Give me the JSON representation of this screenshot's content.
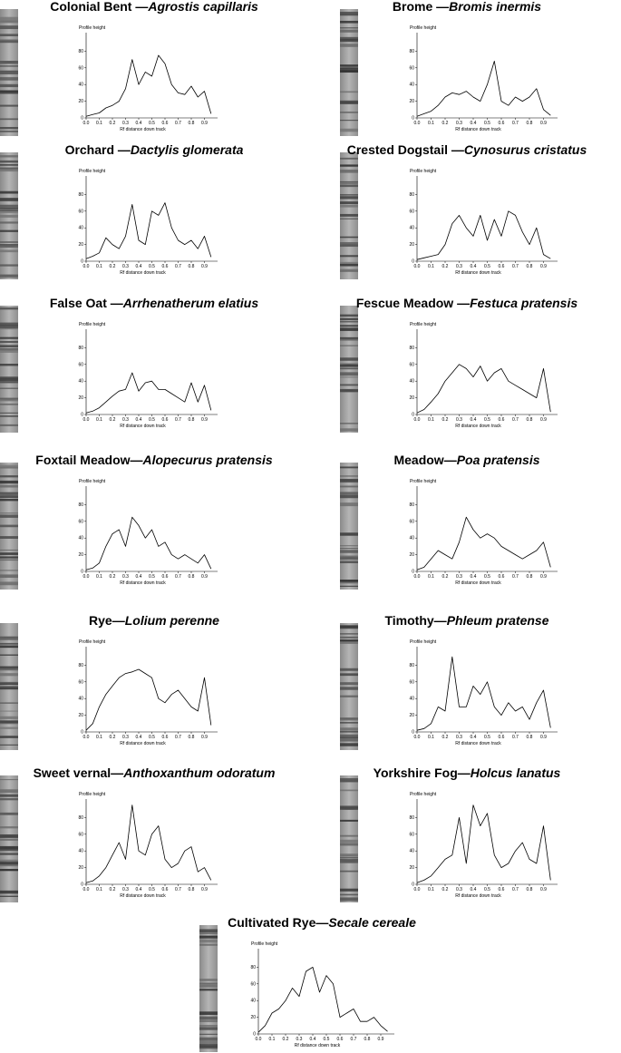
{
  "chart_data": [
    {
      "type": "line",
      "title": "Colonial Bent —",
      "species": "Agrostis capillaris",
      "ylabel": "Profile height",
      "xlabel": "Rf distance down track",
      "x": [
        0,
        0.05,
        0.1,
        0.15,
        0.2,
        0.25,
        0.3,
        0.35,
        0.4,
        0.45,
        0.5,
        0.55,
        0.6,
        0.65,
        0.7,
        0.75,
        0.8,
        0.85,
        0.9,
        0.95
      ],
      "values": [
        2,
        4,
        6,
        12,
        15,
        20,
        35,
        70,
        40,
        55,
        50,
        75,
        65,
        40,
        30,
        28,
        38,
        25,
        32,
        5
      ],
      "xlim": [
        0,
        1
      ],
      "ylim": [
        0,
        100
      ],
      "xticks": [
        {
          "value": 0,
          "label": "0.0"
        },
        0.1,
        0.2,
        0.3,
        0.4,
        0.5,
        0.6,
        0.7,
        0.8,
        0.9
      ],
      "yticks": [
        0,
        20,
        40,
        60,
        80
      ],
      "color": "#000000"
    },
    {
      "type": "line",
      "title": "Brome —",
      "species": "Bromis inermis",
      "ylabel": "Profile height",
      "xlabel": "Rf distance down track",
      "x": [
        0,
        0.05,
        0.1,
        0.15,
        0.2,
        0.25,
        0.3,
        0.35,
        0.4,
        0.45,
        0.5,
        0.55,
        0.6,
        0.65,
        0.7,
        0.75,
        0.8,
        0.85,
        0.9,
        0.95
      ],
      "values": [
        2,
        5,
        8,
        15,
        25,
        30,
        28,
        32,
        25,
        20,
        40,
        68,
        20,
        15,
        25,
        20,
        25,
        35,
        10,
        3
      ],
      "xlim": [
        0,
        1
      ],
      "ylim": [
        0,
        100
      ],
      "xticks": [
        {
          "value": 0,
          "label": "0.0"
        },
        0.1,
        0.2,
        0.3,
        0.4,
        0.5,
        0.6,
        0.7,
        0.8,
        0.9
      ],
      "yticks": [
        0,
        20,
        40,
        60,
        80
      ],
      "color": "#000000"
    },
    {
      "type": "line",
      "title": "Orchard —",
      "species": "Dactylis glomerata",
      "ylabel": "Profile height",
      "xlabel": "Rf distance down track",
      "x": [
        0,
        0.05,
        0.1,
        0.15,
        0.2,
        0.25,
        0.3,
        0.35,
        0.4,
        0.45,
        0.5,
        0.55,
        0.6,
        0.65,
        0.7,
        0.75,
        0.8,
        0.85,
        0.9,
        0.95
      ],
      "values": [
        3,
        6,
        10,
        28,
        20,
        15,
        30,
        68,
        25,
        20,
        60,
        55,
        70,
        40,
        25,
        20,
        25,
        15,
        30,
        5
      ],
      "xlim": [
        0,
        1
      ],
      "ylim": [
        0,
        100
      ],
      "xticks": [
        {
          "value": 0,
          "label": "0.0"
        },
        0.1,
        0.2,
        0.3,
        0.4,
        0.5,
        0.6,
        0.7,
        0.8,
        0.9
      ],
      "yticks": [
        0,
        20,
        40,
        60,
        80
      ],
      "color": "#000000"
    },
    {
      "type": "line",
      "title": "Crested Dogstail —",
      "species": "Cynosurus cristatus",
      "ylabel": "Profile height",
      "xlabel": "Rf distance down track",
      "x": [
        0,
        0.05,
        0.1,
        0.15,
        0.2,
        0.25,
        0.3,
        0.35,
        0.4,
        0.45,
        0.5,
        0.55,
        0.6,
        0.65,
        0.7,
        0.75,
        0.8,
        0.85,
        0.9,
        0.95
      ],
      "values": [
        2,
        4,
        6,
        8,
        20,
        45,
        55,
        40,
        30,
        55,
        25,
        50,
        30,
        60,
        55,
        35,
        20,
        40,
        8,
        3
      ],
      "xlim": [
        0,
        1
      ],
      "ylim": [
        0,
        100
      ],
      "xticks": [
        {
          "value": 0,
          "label": "0.0"
        },
        0.1,
        0.2,
        0.3,
        0.4,
        0.5,
        0.6,
        0.7,
        0.8,
        0.9
      ],
      "yticks": [
        0,
        20,
        40,
        60,
        80
      ],
      "color": "#000000"
    },
    {
      "type": "line",
      "title": "False Oat —",
      "species": "Arrhenatherum elatius",
      "ylabel": "Profile height",
      "xlabel": "Rf distance down track",
      "x": [
        0,
        0.05,
        0.1,
        0.15,
        0.2,
        0.25,
        0.3,
        0.35,
        0.4,
        0.45,
        0.5,
        0.55,
        0.6,
        0.65,
        0.7,
        0.75,
        0.8,
        0.85,
        0.9,
        0.95
      ],
      "values": [
        2,
        4,
        8,
        15,
        22,
        28,
        30,
        50,
        28,
        38,
        40,
        30,
        30,
        25,
        20,
        15,
        38,
        15,
        35,
        5
      ],
      "xlim": [
        0,
        1
      ],
      "ylim": [
        0,
        100
      ],
      "xticks": [
        {
          "value": 0,
          "label": "0.0"
        },
        0.1,
        0.2,
        0.3,
        0.4,
        0.5,
        0.6,
        0.7,
        0.8,
        0.9
      ],
      "yticks": [
        0,
        20,
        40,
        60,
        80
      ],
      "color": "#000000"
    },
    {
      "type": "line",
      "title": "Fescue Meadow —",
      "species": "Festuca pratensis",
      "ylabel": "Profile height",
      "xlabel": "Rf distance down track",
      "x": [
        0,
        0.05,
        0.1,
        0.15,
        0.2,
        0.25,
        0.3,
        0.35,
        0.4,
        0.45,
        0.5,
        0.55,
        0.6,
        0.65,
        0.7,
        0.75,
        0.8,
        0.85,
        0.9,
        0.95
      ],
      "values": [
        2,
        6,
        15,
        25,
        40,
        50,
        60,
        55,
        45,
        58,
        40,
        50,
        55,
        40,
        35,
        30,
        25,
        20,
        55,
        3
      ],
      "xlim": [
        0,
        1
      ],
      "ylim": [
        0,
        100
      ],
      "xticks": [
        {
          "value": 0,
          "label": "0.0"
        },
        0.1,
        0.2,
        0.3,
        0.4,
        0.5,
        0.6,
        0.7,
        0.8,
        0.9
      ],
      "yticks": [
        0,
        20,
        40,
        60,
        80
      ],
      "color": "#000000"
    },
    {
      "type": "line",
      "title": "Foxtail Meadow—",
      "species": "Alopecurus pratensis",
      "ylabel": "Profile height",
      "xlabel": "Rf distance down track",
      "x": [
        0,
        0.05,
        0.1,
        0.15,
        0.2,
        0.25,
        0.3,
        0.35,
        0.4,
        0.45,
        0.5,
        0.55,
        0.6,
        0.65,
        0.7,
        0.75,
        0.8,
        0.85,
        0.9,
        0.95
      ],
      "values": [
        2,
        4,
        10,
        30,
        45,
        50,
        30,
        65,
        55,
        40,
        50,
        30,
        35,
        20,
        15,
        20,
        15,
        10,
        20,
        3
      ],
      "xlim": [
        0,
        1
      ],
      "ylim": [
        0,
        100
      ],
      "xticks": [
        {
          "value": 0,
          "label": "0.0"
        },
        0.1,
        0.2,
        0.3,
        0.4,
        0.5,
        0.6,
        0.7,
        0.8,
        0.9
      ],
      "yticks": [
        0,
        20,
        40,
        60,
        80
      ],
      "color": "#000000"
    },
    {
      "type": "line",
      "title": "Meadow—",
      "species": "Poa pratensis",
      "ylabel": "Profile height",
      "xlabel": "Rf distance down track",
      "x": [
        0,
        0.05,
        0.1,
        0.15,
        0.2,
        0.25,
        0.3,
        0.35,
        0.4,
        0.45,
        0.5,
        0.55,
        0.6,
        0.65,
        0.7,
        0.75,
        0.8,
        0.85,
        0.9,
        0.95
      ],
      "values": [
        2,
        5,
        15,
        25,
        20,
        15,
        35,
        65,
        50,
        40,
        45,
        40,
        30,
        25,
        20,
        15,
        20,
        25,
        35,
        5
      ],
      "xlim": [
        0,
        1
      ],
      "ylim": [
        0,
        100
      ],
      "xticks": [
        {
          "value": 0,
          "label": "0.0"
        },
        0.1,
        0.2,
        0.3,
        0.4,
        0.5,
        0.6,
        0.7,
        0.8,
        0.9
      ],
      "yticks": [
        0,
        20,
        40,
        60,
        80
      ],
      "color": "#000000"
    },
    {
      "type": "line",
      "title": "Rye—",
      "species": "Lolium perenne",
      "ylabel": "Profile height",
      "xlabel": "Rf distance down track",
      "x": [
        0,
        0.05,
        0.1,
        0.15,
        0.2,
        0.25,
        0.3,
        0.35,
        0.4,
        0.45,
        0.5,
        0.55,
        0.6,
        0.65,
        0.7,
        0.75,
        0.8,
        0.85,
        0.9,
        0.95
      ],
      "values": [
        2,
        10,
        30,
        45,
        55,
        65,
        70,
        72,
        75,
        70,
        65,
        40,
        35,
        45,
        50,
        40,
        30,
        25,
        65,
        8
      ],
      "xlim": [
        0,
        1
      ],
      "ylim": [
        0,
        100
      ],
      "xticks": [
        {
          "value": 0,
          "label": "0.0"
        },
        0.1,
        0.2,
        0.3,
        0.4,
        0.5,
        0.6,
        0.7,
        0.8,
        0.9
      ],
      "yticks": [
        0,
        20,
        40,
        60,
        80
      ],
      "color": "#000000"
    },
    {
      "type": "line",
      "title": "Timothy—",
      "species": "Phleum pratense",
      "ylabel": "Profile height",
      "xlabel": "Rf distance down track",
      "x": [
        0,
        0.05,
        0.1,
        0.15,
        0.2,
        0.25,
        0.3,
        0.35,
        0.4,
        0.45,
        0.5,
        0.55,
        0.6,
        0.65,
        0.7,
        0.75,
        0.8,
        0.85,
        0.9,
        0.95
      ],
      "values": [
        2,
        4,
        10,
        30,
        25,
        90,
        30,
        30,
        55,
        45,
        60,
        30,
        20,
        35,
        25,
        30,
        15,
        35,
        50,
        5
      ],
      "xlim": [
        0,
        1
      ],
      "ylim": [
        0,
        100
      ],
      "xticks": [
        {
          "value": 0,
          "label": "0.0"
        },
        0.1,
        0.2,
        0.3,
        0.4,
        0.5,
        0.6,
        0.7,
        0.8,
        0.9
      ],
      "yticks": [
        0,
        20,
        40,
        60,
        80
      ],
      "color": "#000000"
    },
    {
      "type": "line",
      "title": "Sweet vernal—",
      "species": "Anthoxanthum odoratum",
      "ylabel": "Profile height",
      "xlabel": "Rf distance down track",
      "x": [
        0,
        0.05,
        0.1,
        0.15,
        0.2,
        0.25,
        0.3,
        0.35,
        0.4,
        0.45,
        0.5,
        0.55,
        0.6,
        0.65,
        0.7,
        0.75,
        0.8,
        0.85,
        0.9,
        0.95
      ],
      "values": [
        2,
        4,
        10,
        20,
        35,
        50,
        30,
        95,
        40,
        35,
        60,
        70,
        30,
        20,
        25,
        40,
        45,
        15,
        20,
        5
      ],
      "xlim": [
        0,
        1
      ],
      "ylim": [
        0,
        100
      ],
      "xticks": [
        {
          "value": 0,
          "label": "0.0"
        },
        0.1,
        0.2,
        0.3,
        0.4,
        0.5,
        0.6,
        0.7,
        0.8,
        0.9
      ],
      "yticks": [
        0,
        20,
        40,
        60,
        80
      ],
      "color": "#000000"
    },
    {
      "type": "line",
      "title": "Yorkshire Fog—",
      "species": "Holcus lanatus",
      "ylabel": "Profile height",
      "xlabel": "Rf distance down track",
      "x": [
        0,
        0.05,
        0.1,
        0.15,
        0.2,
        0.25,
        0.3,
        0.35,
        0.4,
        0.45,
        0.5,
        0.55,
        0.6,
        0.65,
        0.7,
        0.75,
        0.8,
        0.85,
        0.9,
        0.95
      ],
      "values": [
        2,
        5,
        10,
        20,
        30,
        35,
        80,
        25,
        95,
        70,
        85,
        35,
        20,
        25,
        40,
        50,
        30,
        25,
        70,
        5
      ],
      "xlim": [
        0,
        1
      ],
      "ylim": [
        0,
        100
      ],
      "xticks": [
        {
          "value": 0,
          "label": "0.0"
        },
        0.1,
        0.2,
        0.3,
        0.4,
        0.5,
        0.6,
        0.7,
        0.8,
        0.9
      ],
      "yticks": [
        0,
        20,
        40,
        60,
        80
      ],
      "color": "#000000"
    },
    {
      "type": "line",
      "title": "Cultivated Rye—",
      "species": "Secale cereale",
      "ylabel": "Profile height",
      "xlabel": "Rf distance down track",
      "x": [
        0,
        0.05,
        0.1,
        0.15,
        0.2,
        0.25,
        0.3,
        0.35,
        0.4,
        0.45,
        0.5,
        0.55,
        0.6,
        0.65,
        0.7,
        0.75,
        0.8,
        0.85,
        0.9,
        0.95
      ],
      "values": [
        2,
        10,
        25,
        30,
        40,
        55,
        45,
        75,
        80,
        50,
        70,
        60,
        20,
        25,
        30,
        15,
        15,
        20,
        10,
        3
      ],
      "xlim": [
        0,
        1
      ],
      "ylim": [
        0,
        100
      ],
      "xticks": [
        {
          "value": 0,
          "label": "0.0"
        },
        0.1,
        0.2,
        0.3,
        0.4,
        0.5,
        0.6,
        0.7,
        0.8,
        0.9
      ],
      "yticks": [
        0,
        20,
        40,
        60,
        80
      ],
      "color": "#000000"
    }
  ]
}
